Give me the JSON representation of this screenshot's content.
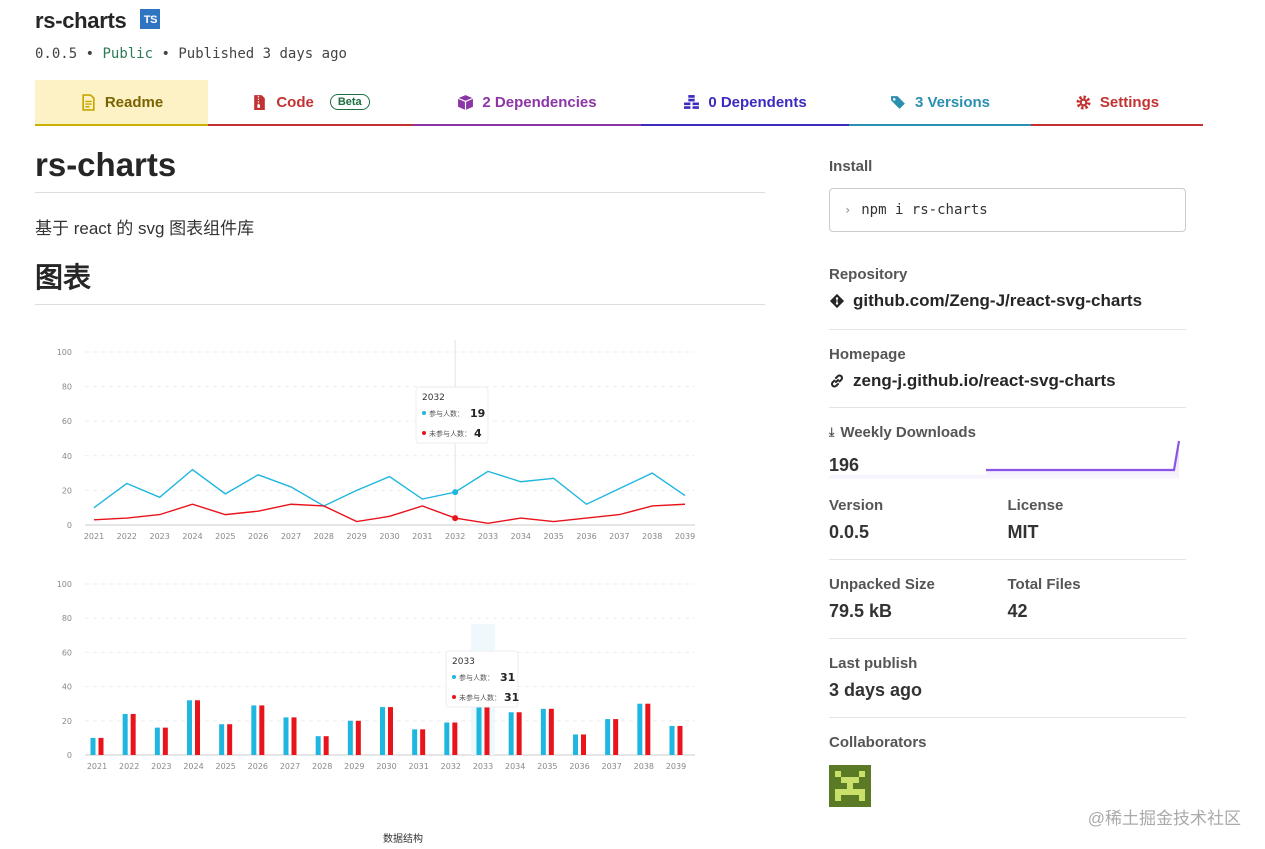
{
  "package": {
    "name": "rs-charts",
    "ts_badge": "TS",
    "version": "0.0.5",
    "sep": "•",
    "visibility": "Public",
    "published": "Published 3 days ago"
  },
  "tabs": [
    {
      "label": "Readme",
      "icon": "file-text-icon",
      "color": "#cbb100",
      "bg": "#fdf2c5"
    },
    {
      "label": "Code",
      "icon": "file-zip-icon",
      "color": "#c23232",
      "badge": "Beta"
    },
    {
      "label": "2 Dependencies",
      "icon": "box-icon",
      "color": "#8b35a6"
    },
    {
      "label": "0 Dependents",
      "icon": "boxes-icon",
      "color": "#3b2bbf"
    },
    {
      "label": "3 Versions",
      "icon": "tags-icon",
      "color": "#2a8fb0"
    },
    {
      "label": "Settings",
      "icon": "gear-icon",
      "color": "#c23232"
    }
  ],
  "readme": {
    "title": "rs-charts",
    "description": "基于 react 的 svg 图表组件库",
    "section": "图表",
    "footer_text": "数据结构"
  },
  "chart_data": [
    {
      "type": "line",
      "x": [
        "2021",
        "2022",
        "2023",
        "2024",
        "2025",
        "2026",
        "2027",
        "2028",
        "2029",
        "2030",
        "2031",
        "2032",
        "2033",
        "2034",
        "2035",
        "2036",
        "2037",
        "2038",
        "2039"
      ],
      "ylim": [
        0,
        100
      ],
      "yticks": [
        "100",
        "80",
        "60",
        "40",
        "20",
        "0"
      ],
      "series": [
        {
          "name": "参与人数",
          "color": "#1fb6e0",
          "values": [
            10,
            24,
            16,
            32,
            18,
            29,
            22,
            11,
            20,
            28,
            15,
            19,
            31,
            25,
            27,
            12,
            21,
            30,
            17
          ]
        },
        {
          "name": "未参与人数",
          "color": "#e8131b",
          "values": [
            3,
            4,
            6,
            12,
            6,
            8,
            12,
            11,
            2,
            5,
            11,
            4,
            1,
            4,
            2,
            4,
            6,
            11,
            12
          ]
        }
      ],
      "tooltip": {
        "x": "2032",
        "rows": [
          {
            "name": "参与人数：",
            "value": "19"
          },
          {
            "name": "未参与人数：",
            "value": "4"
          }
        ]
      }
    },
    {
      "type": "bar",
      "x": [
        "2021",
        "2022",
        "2023",
        "2024",
        "2025",
        "2026",
        "2027",
        "2028",
        "2029",
        "2030",
        "2031",
        "2032",
        "2033",
        "2034",
        "2035",
        "2036",
        "2037",
        "2038",
        "2039"
      ],
      "ylim": [
        0,
        100
      ],
      "yticks": [
        "100",
        "80",
        "60",
        "40",
        "20",
        "0"
      ],
      "series": [
        {
          "name": "参与人数",
          "color": "#1fb6e0",
          "values": [
            10,
            24,
            16,
            32,
            18,
            29,
            22,
            11,
            20,
            28,
            15,
            19,
            31,
            25,
            27,
            12,
            21,
            30,
            17
          ]
        },
        {
          "name": "未参与人数",
          "color": "#e8131b",
          "values": [
            10,
            24,
            16,
            32,
            18,
            29,
            22,
            11,
            20,
            28,
            15,
            19,
            31,
            25,
            27,
            12,
            21,
            30,
            17
          ]
        }
      ],
      "tooltip": {
        "x": "2033",
        "rows": [
          {
            "name": "参与人数：",
            "value": "31"
          },
          {
            "name": "未参与人数：",
            "value": "31"
          }
        ]
      }
    }
  ],
  "sidebar": {
    "install_label": "Install",
    "install_cmd": "npm i rs-charts",
    "repository_label": "Repository",
    "repository": "github.com/Zeng-J/react-svg-charts",
    "homepage_label": "Homepage",
    "homepage": "zeng-j.github.io/react-svg-charts",
    "weekly_downloads_label": "Weekly Downloads",
    "weekly_downloads": "196",
    "sparkline_color": "#8955e6",
    "version_label": "Version",
    "version": "0.0.5",
    "license_label": "License",
    "license": "MIT",
    "unpacked_label": "Unpacked Size",
    "unpacked": "79.5 kB",
    "total_files_label": "Total Files",
    "total_files": "42",
    "last_publish_label": "Last publish",
    "last_publish": "3 days ago",
    "collaborators_label": "Collaborators"
  },
  "watermark": "@稀土掘金技术社区"
}
